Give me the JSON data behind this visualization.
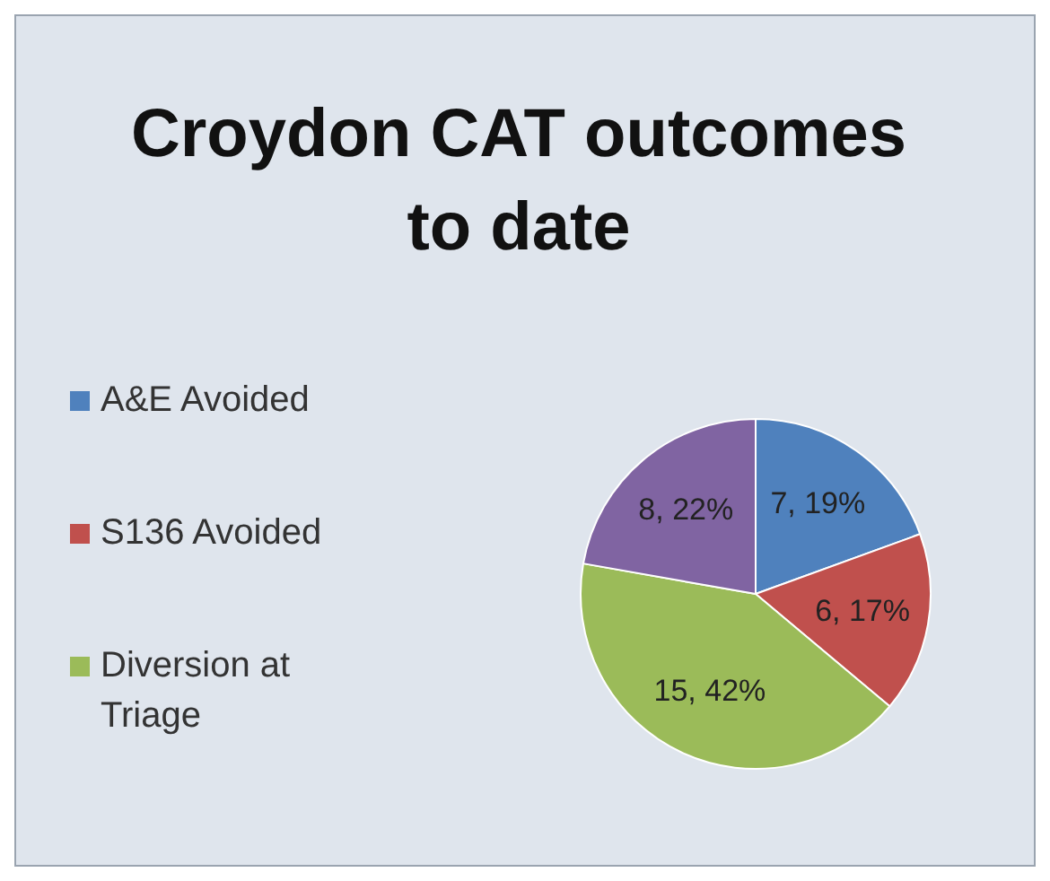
{
  "chart_data": {
    "type": "pie",
    "title": "Croydon CAT outcomes to date",
    "categories": [
      "A&E Avoided",
      "S136 Avoided",
      "Diversion at Triage",
      null
    ],
    "values": [
      7,
      6,
      15,
      8
    ],
    "colors": [
      "#4f81bd",
      "#c0504d",
      "#9bbb59",
      "#8064a2"
    ],
    "value_labels": [
      "7, 19%",
      "6, 17%",
      "15, 42%",
      "8, 22%"
    ],
    "legend": "left"
  }
}
